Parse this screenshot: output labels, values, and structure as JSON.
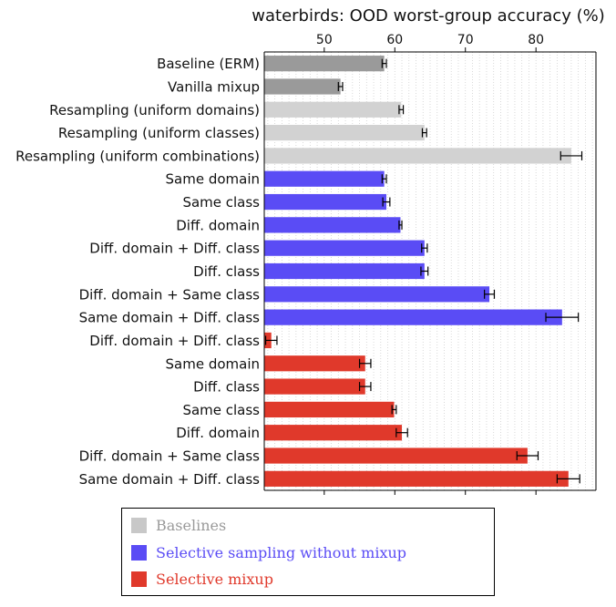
{
  "chart_data": {
    "type": "bar",
    "orientation": "horizontal",
    "title": "waterbirds: OOD worst-group accuracy (%)",
    "xlabel": "",
    "ylabel": "",
    "xlim": [
      41.5,
      88.5
    ],
    "xticks": [
      50,
      60,
      70,
      80
    ],
    "grid": "vertical minor dotted",
    "legend_position": "bottom",
    "categories": [
      "Baseline (ERM)",
      "Vanilla mixup",
      "Resampling (uniform domains)",
      "Resampling (uniform classes)",
      "Resampling (uniform combinations)",
      "Same domain",
      "Same class",
      "Diff. domain",
      "Diff. domain + Diff. class",
      "Diff. class",
      "Diff. domain + Same class",
      "Same domain + Diff. class",
      "Diff. domain + Diff. class",
      "Same domain",
      "Diff. class",
      "Same class",
      "Diff. domain",
      "Diff. domain + Same class",
      "Same domain + Diff. class"
    ],
    "values": [
      58.5,
      52.3,
      60.9,
      64.2,
      85.0,
      58.5,
      58.8,
      60.8,
      64.2,
      64.2,
      73.4,
      83.7,
      42.5,
      55.8,
      55.8,
      59.9,
      61.0,
      78.8,
      84.6
    ],
    "errors": [
      0.3,
      0.3,
      0.3,
      0.3,
      1.5,
      0.3,
      0.5,
      0.2,
      0.4,
      0.5,
      0.7,
      2.3,
      0.8,
      0.8,
      0.8,
      0.3,
      0.8,
      1.5,
      1.6
    ],
    "groups": [
      0,
      0,
      0,
      0,
      0,
      1,
      1,
      1,
      1,
      1,
      1,
      1,
      2,
      2,
      2,
      2,
      2,
      2,
      2
    ],
    "bar_colors": [
      "#9a9a9a",
      "#9a9a9a",
      "#d2d2d2",
      "#d2d2d2",
      "#d2d2d2",
      "#5a4cf5",
      "#5a4cf5",
      "#5a4cf5",
      "#5a4cf5",
      "#5a4cf5",
      "#5a4cf5",
      "#5a4cf5",
      "#e0392b",
      "#e0392b",
      "#e0392b",
      "#e0392b",
      "#e0392b",
      "#e0392b",
      "#e0392b"
    ],
    "legend": [
      {
        "label": "Baselines",
        "color": "#c8c8c8",
        "text_color": "#9a9a9a"
      },
      {
        "label": "Selective sampling without mixup",
        "color": "#5a4cf5",
        "text_color": "#5a4cf5"
      },
      {
        "label": "Selective mixup",
        "color": "#e0392b",
        "text_color": "#e0392b"
      }
    ]
  }
}
